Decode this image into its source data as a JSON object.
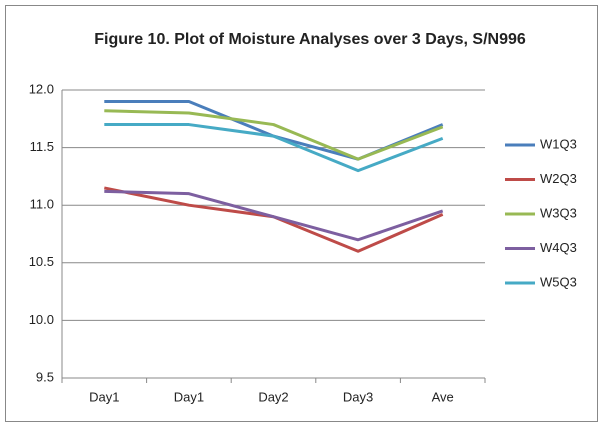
{
  "chart_data": {
    "type": "line",
    "title": "Figure 10. Plot of Moisture Analyses over 3 Days, S/N996",
    "categories": [
      "Day1",
      "Day1",
      "Day2",
      "Day3",
      "Ave"
    ],
    "series": [
      {
        "name": "W1Q3",
        "color": "#4a7ebb",
        "values": [
          11.9,
          11.9,
          11.6,
          11.4,
          11.7
        ]
      },
      {
        "name": "W2Q3",
        "color": "#be4b48",
        "values": [
          11.15,
          11.0,
          10.9,
          10.6,
          10.92
        ]
      },
      {
        "name": "W3Q3",
        "color": "#98b954",
        "values": [
          11.82,
          11.8,
          11.7,
          11.4,
          11.68
        ]
      },
      {
        "name": "W4Q3",
        "color": "#7d5fa0",
        "values": [
          11.12,
          11.1,
          10.9,
          10.7,
          10.95
        ]
      },
      {
        "name": "W5Q3",
        "color": "#46aac5",
        "values": [
          11.7,
          11.7,
          11.6,
          11.3,
          11.58
        ]
      }
    ],
    "ylim": [
      9.5,
      12
    ],
    "yticks": [
      9.5,
      {
        "value": 10,
        "label": "10.0"
      },
      10.5,
      {
        "value": 11,
        "label": "11.0"
      },
      11.5,
      {
        "value": 12,
        "label": "12.0"
      }
    ],
    "grid": true,
    "legend": "right"
  }
}
